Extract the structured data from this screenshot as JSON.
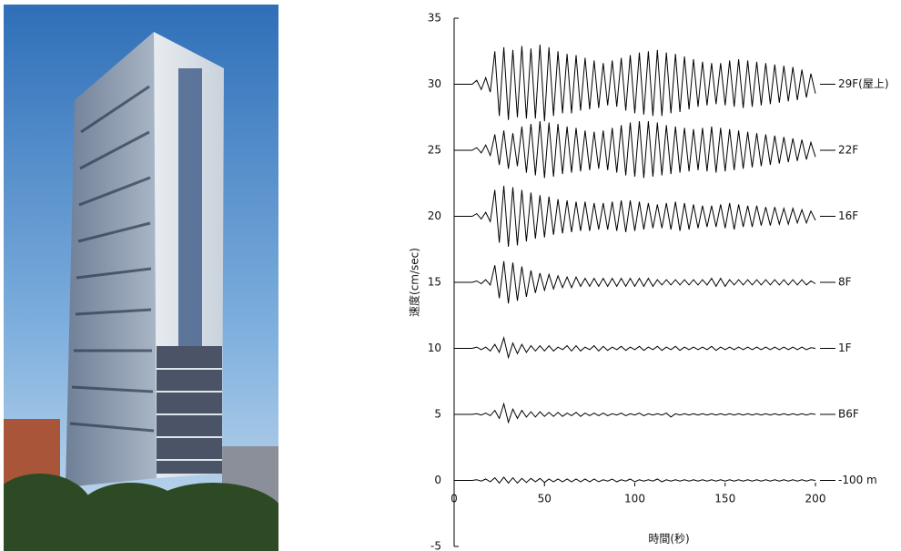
{
  "chart_data": {
    "type": "line",
    "x_label": "時間(秒)",
    "y_label": "速度(cm/sec)",
    "x": [
      0,
      2.5,
      5,
      7.5,
      10,
      12.5,
      15,
      17.5,
      20,
      22.5,
      25,
      27.5,
      30,
      32.5,
      35,
      37.5,
      40,
      42.5,
      45,
      47.5,
      50,
      52.5,
      55,
      57.5,
      60,
      62.5,
      65,
      67.5,
      70,
      72.5,
      75,
      77.5,
      80,
      82.5,
      85,
      87.5,
      90,
      92.5,
      95,
      97.5,
      100,
      102.5,
      105,
      107.5,
      110,
      112.5,
      115,
      117.5,
      120,
      122.5,
      125,
      127.5,
      130,
      132.5,
      135,
      137.5,
      140,
      142.5,
      145,
      147.5,
      150,
      152.5,
      155,
      157.5,
      160,
      162.5,
      165,
      167.5,
      170,
      172.5,
      175,
      177.5,
      180,
      182.5,
      185,
      187.5,
      190,
      192.5,
      195,
      197.5,
      200
    ],
    "xlim": [
      0,
      200
    ],
    "xticks": [
      0,
      50,
      100,
      150,
      200
    ],
    "ylim": [
      -5,
      35
    ],
    "yticks": [
      -5,
      0,
      5,
      10,
      15,
      20,
      25,
      30,
      35
    ],
    "series": [
      {
        "name": "29F(屋上)",
        "color": "#000000",
        "values": [
          30,
          30,
          30,
          30,
          30,
          30.3,
          29.6,
          30.5,
          29.4,
          32.5,
          27.6,
          32.8,
          27.3,
          32.6,
          27.5,
          32.9,
          27.4,
          32.7,
          27.4,
          33,
          27.2,
          32.8,
          27.6,
          32.5,
          27.8,
          32.3,
          27.8,
          32.2,
          28,
          32,
          28.1,
          31.8,
          28.2,
          31.6,
          28.4,
          31.8,
          28.3,
          32,
          28,
          32.2,
          27.8,
          32.4,
          27.7,
          32.5,
          27.6,
          32.6,
          27.6,
          32.4,
          27.8,
          32.3,
          27.9,
          32.1,
          28.1,
          31.9,
          28.3,
          31.7,
          28.4,
          31.6,
          28.5,
          31.6,
          28.4,
          31.8,
          28.3,
          31.9,
          28.2,
          31.8,
          28.3,
          31.7,
          28.4,
          31.6,
          28.5,
          31.5,
          28.6,
          31.4,
          28.7,
          31.3,
          28.8,
          31.1,
          29,
          30.8,
          29.3
        ]
      },
      {
        "name": "22F",
        "color": "#000000",
        "values": [
          25,
          25,
          25,
          25,
          25,
          25.2,
          24.8,
          25.4,
          24.6,
          26.2,
          23.9,
          26.5,
          23.6,
          26.3,
          23.8,
          26.8,
          23.3,
          27,
          23.1,
          27.2,
          22.9,
          27.1,
          23,
          27,
          23.2,
          26.8,
          23.3,
          26.7,
          23.4,
          26.5,
          23.5,
          26.4,
          23.6,
          26.5,
          23.5,
          26.7,
          23.3,
          26.9,
          23.1,
          27.1,
          23,
          27.2,
          22.9,
          27.2,
          23,
          27.1,
          23.1,
          26.9,
          23.2,
          26.8,
          23.3,
          26.7,
          23.4,
          26.6,
          23.5,
          26.7,
          23.4,
          26.8,
          23.3,
          26.7,
          23.4,
          26.6,
          23.5,
          26.5,
          23.6,
          26.4,
          23.7,
          26.3,
          23.8,
          26.2,
          23.9,
          26.1,
          24,
          26,
          24.1,
          25.9,
          24.2,
          25.8,
          24.3,
          25.6,
          24.5
        ]
      },
      {
        "name": "16F",
        "color": "#000000",
        "values": [
          20,
          20,
          20,
          20,
          20,
          20.2,
          19.8,
          20.3,
          19.6,
          22,
          18,
          22.3,
          17.7,
          22.2,
          17.8,
          22,
          18.1,
          21.8,
          18.3,
          21.6,
          18.4,
          21.5,
          18.6,
          21.3,
          18.7,
          21.2,
          18.8,
          21.1,
          18.9,
          21.1,
          18.9,
          21,
          19,
          21,
          19,
          21.1,
          18.9,
          21.2,
          18.8,
          21.2,
          18.9,
          21.1,
          19,
          21,
          19.1,
          20.9,
          19.1,
          21,
          19,
          21.1,
          18.9,
          21,
          19,
          20.9,
          19.1,
          20.8,
          19.2,
          20.8,
          19.2,
          20.9,
          19.1,
          21,
          19,
          20.9,
          19.2,
          20.8,
          19.2,
          20.8,
          19.3,
          20.7,
          19.3,
          20.7,
          19.4,
          20.6,
          19.4,
          20.6,
          19.5,
          20.5,
          19.5,
          20.4,
          19.7
        ]
      },
      {
        "name": "8F",
        "color": "#000000",
        "values": [
          15,
          15,
          15,
          15,
          15,
          15.1,
          14.9,
          15.2,
          14.8,
          16.3,
          13.8,
          16.6,
          13.4,
          16.5,
          13.6,
          16.2,
          13.9,
          15.9,
          14.2,
          15.7,
          14.4,
          15.6,
          14.5,
          15.5,
          14.6,
          15.4,
          14.6,
          15.4,
          14.7,
          15.3,
          14.7,
          15.3,
          14.7,
          15.3,
          14.7,
          15.3,
          14.7,
          15.3,
          14.7,
          15.3,
          14.7,
          15.3,
          14.7,
          15.3,
          14.7,
          15.2,
          14.8,
          15.2,
          14.8,
          15.2,
          14.8,
          15.2,
          14.8,
          15.2,
          14.8,
          15.2,
          14.8,
          15.3,
          14.7,
          15.3,
          14.7,
          15.2,
          14.8,
          15.2,
          14.8,
          15.2,
          14.8,
          15.2,
          14.8,
          15.2,
          14.8,
          15.2,
          14.8,
          15.2,
          14.8,
          15.2,
          14.8,
          15.2,
          14.8,
          15.1,
          14.9
        ]
      },
      {
        "name": "1F",
        "color": "#000000",
        "values": [
          10,
          10,
          10,
          10,
          10,
          10.1,
          9.9,
          10.1,
          9.8,
          10.3,
          9.7,
          10.8,
          9.3,
          10.4,
          9.6,
          10.3,
          9.7,
          10.2,
          9.8,
          10.2,
          9.8,
          10.2,
          9.8,
          10.1,
          9.9,
          10.2,
          9.8,
          10.2,
          9.8,
          10.1,
          9.9,
          10.2,
          9.8,
          10.15,
          9.85,
          10.1,
          9.9,
          10.15,
          9.85,
          10.1,
          9.9,
          10.15,
          9.85,
          10.1,
          9.9,
          10.15,
          9.85,
          10.1,
          9.9,
          10.15,
          9.85,
          10.1,
          9.9,
          10.1,
          9.9,
          10.1,
          9.9,
          10.15,
          9.85,
          10.1,
          9.9,
          10.1,
          9.9,
          10.1,
          9.9,
          10.1,
          9.9,
          10.1,
          9.9,
          10.1,
          9.9,
          10.1,
          9.9,
          10.1,
          9.9,
          10.1,
          9.9,
          10.1,
          9.9,
          10.05,
          10
        ]
      },
      {
        "name": "B6F",
        "color": "#000000",
        "values": [
          5,
          5,
          5,
          5,
          5,
          5.05,
          4.95,
          5.1,
          4.9,
          5.3,
          4.7,
          5.8,
          4.4,
          5.4,
          4.7,
          5.3,
          4.8,
          5.2,
          4.8,
          5.2,
          4.85,
          5.15,
          4.85,
          5.15,
          4.85,
          5.1,
          4.9,
          5.15,
          4.85,
          5.1,
          4.9,
          5.1,
          4.9,
          5.1,
          4.9,
          5.05,
          4.95,
          5.1,
          4.9,
          5.05,
          4.95,
          5.1,
          4.9,
          5.05,
          4.95,
          5.05,
          4.95,
          5.1,
          4.8,
          5.05,
          4.95,
          5.05,
          4.95,
          5.05,
          4.95,
          5.05,
          4.95,
          5.05,
          4.95,
          5.05,
          4.95,
          5.05,
          4.95,
          5.05,
          4.95,
          5.05,
          4.95,
          5.05,
          4.95,
          5.05,
          4.95,
          5.05,
          4.95,
          5.05,
          4.95,
          5.05,
          4.95,
          5.05,
          4.95,
          5.05,
          5
        ]
      },
      {
        "name": "-100 m",
        "color": "#000000",
        "values": [
          0,
          0,
          0,
          0,
          0,
          0.05,
          -0.05,
          0.1,
          -0.1,
          0.2,
          -0.2,
          0.25,
          -0.2,
          0.2,
          -0.2,
          0.15,
          -0.15,
          0.15,
          -0.1,
          0.15,
          -0.15,
          0.1,
          -0.1,
          0.1,
          -0.1,
          0.1,
          -0.1,
          0.1,
          -0.1,
          0.1,
          -0.1,
          0.1,
          -0.1,
          0.05,
          -0.05,
          0.1,
          -0.1,
          0.05,
          -0.05,
          0.1,
          -0.1,
          0.05,
          -0.05,
          0.05,
          -0.05,
          0.1,
          -0.1,
          0.05,
          -0.05,
          0.05,
          -0.05,
          0.05,
          -0.05,
          0.05,
          -0.05,
          0.05,
          -0.05,
          0.05,
          -0.05,
          0.05,
          -0.05,
          0.05,
          -0.05,
          0.05,
          -0.05,
          0.05,
          -0.05,
          0.05,
          -0.05,
          0.05,
          -0.05,
          0.05,
          -0.05,
          0.05,
          -0.05,
          0.05,
          -0.05,
          0.05,
          -0.05,
          0.05,
          0
        ]
      }
    ]
  }
}
